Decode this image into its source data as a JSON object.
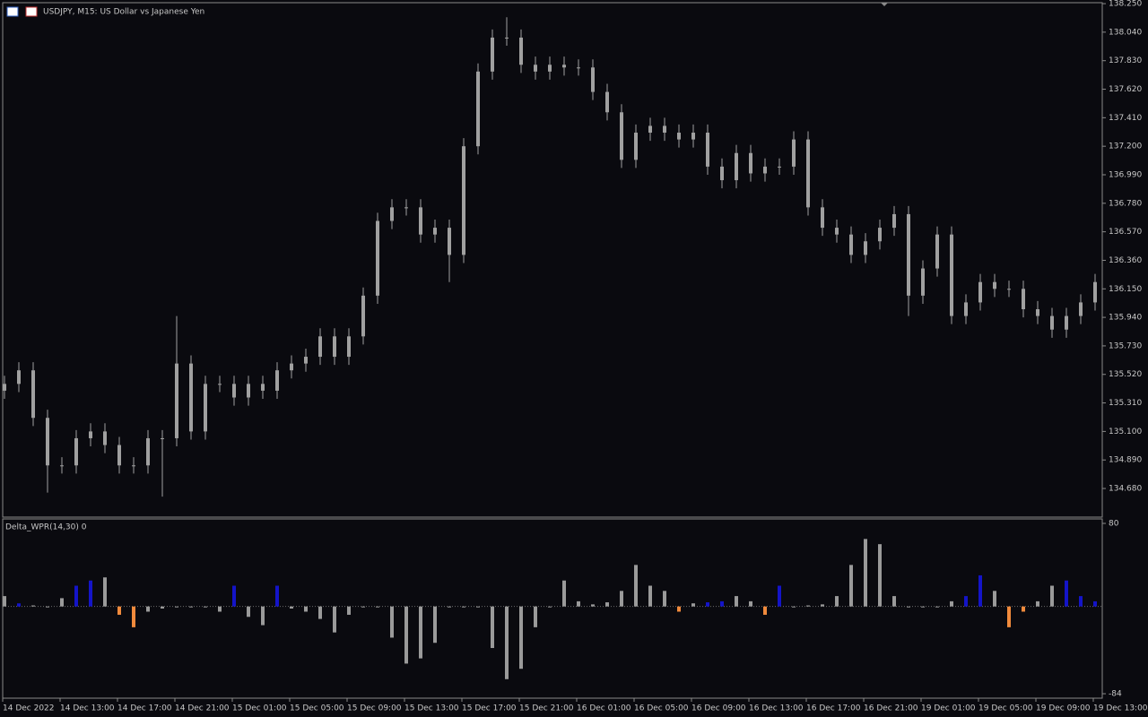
{
  "chart_data": [
    {
      "type": "candlestick",
      "title": "USDJPY, M15:  US Dollar vs Japanese Yen",
      "color": "#a0a0a0",
      "open": [
        135.4,
        135.45,
        135.55,
        135.2,
        134.85,
        134.85,
        135.05,
        135.1,
        135.0,
        134.85,
        134.85,
        135.05,
        135.05,
        135.6,
        135.1,
        135.45,
        135.45,
        135.35,
        135.45,
        135.4,
        135.55,
        135.6,
        135.65,
        135.8,
        135.65,
        135.8,
        136.1,
        136.65,
        136.75,
        136.75,
        136.55,
        136.6,
        136.4,
        137.2,
        137.75,
        138.0,
        138.0,
        137.8,
        137.75,
        137.8,
        137.78,
        137.78,
        137.6,
        137.45,
        137.1,
        137.3,
        137.35,
        137.3,
        137.25,
        137.3,
        137.05,
        136.95,
        137.15,
        137.0,
        137.05,
        137.05,
        137.25,
        136.75,
        136.6,
        136.55,
        136.4,
        136.5,
        136.6,
        136.7,
        136.1,
        136.3,
        136.55,
        135.95,
        136.05,
        136.2,
        136.15,
        136.15,
        136.0,
        135.95,
        135.85,
        135.95,
        136.05
      ],
      "high": [
        135.51,
        135.61,
        135.61,
        135.26,
        134.91,
        135.11,
        135.16,
        135.16,
        135.06,
        134.91,
        135.11,
        135.11,
        135.95,
        135.66,
        135.51,
        135.51,
        135.51,
        135.51,
        135.51,
        135.61,
        135.66,
        135.71,
        135.86,
        135.86,
        135.86,
        136.16,
        136.71,
        136.81,
        136.81,
        136.81,
        136.66,
        136.66,
        137.26,
        137.81,
        138.06,
        138.15,
        138.06,
        137.86,
        137.86,
        137.86,
        137.84,
        137.84,
        137.66,
        137.51,
        137.36,
        137.41,
        137.41,
        137.36,
        137.36,
        137.36,
        137.11,
        137.21,
        137.21,
        137.11,
        137.11,
        137.31,
        137.31,
        136.81,
        136.66,
        136.61,
        136.56,
        136.66,
        136.76,
        136.76,
        136.36,
        136.61,
        136.61,
        136.11,
        136.26,
        136.26,
        136.21,
        136.21,
        136.06,
        136.01,
        136.01,
        136.11,
        136.26
      ],
      "low": [
        135.34,
        135.39,
        135.14,
        134.65,
        134.79,
        134.79,
        134.99,
        134.94,
        134.79,
        134.79,
        134.79,
        134.62,
        134.99,
        135.04,
        135.04,
        135.39,
        135.29,
        135.29,
        135.34,
        135.34,
        135.49,
        135.54,
        135.59,
        135.59,
        135.59,
        135.74,
        136.04,
        136.59,
        136.69,
        136.49,
        136.49,
        136.2,
        136.34,
        137.14,
        137.69,
        137.94,
        137.74,
        137.69,
        137.69,
        137.72,
        137.72,
        137.54,
        137.39,
        137.04,
        137.04,
        137.24,
        137.24,
        137.19,
        137.19,
        136.99,
        136.89,
        136.89,
        136.94,
        136.94,
        136.99,
        136.99,
        136.69,
        136.54,
        136.49,
        136.34,
        136.34,
        136.44,
        136.54,
        135.95,
        136.04,
        136.24,
        135.89,
        135.89,
        135.99,
        136.09,
        136.09,
        135.94,
        135.89,
        135.79,
        135.79,
        135.89,
        135.99
      ],
      "close": [
        135.45,
        135.55,
        135.2,
        134.85,
        134.85,
        135.05,
        135.1,
        135.0,
        134.85,
        134.85,
        135.05,
        135.05,
        135.6,
        135.1,
        135.45,
        135.45,
        135.35,
        135.45,
        135.4,
        135.55,
        135.6,
        135.65,
        135.8,
        135.65,
        135.8,
        136.1,
        136.65,
        136.75,
        136.75,
        136.55,
        136.6,
        136.4,
        137.2,
        137.75,
        138.0,
        138.0,
        137.8,
        137.75,
        137.8,
        137.78,
        137.78,
        137.6,
        137.45,
        137.1,
        137.3,
        137.35,
        137.3,
        137.25,
        137.3,
        137.05,
        136.95,
        137.15,
        137.0,
        137.05,
        137.05,
        137.25,
        136.75,
        136.6,
        136.55,
        136.4,
        136.5,
        136.6,
        136.7,
        136.1,
        136.3,
        136.55,
        135.95,
        136.05,
        136.2,
        136.15,
        136.15,
        136.0,
        135.95,
        135.85,
        135.95,
        136.05,
        136.2
      ],
      "ylim": [
        134.469,
        138.257
      ],
      "yticks": [
        {
          "value": 138.25,
          "label": "138.250"
        },
        {
          "value": 138.04,
          "label": "138.040"
        },
        {
          "value": 137.83,
          "label": "137.830"
        },
        {
          "value": 137.62,
          "label": "137.620"
        },
        {
          "value": 137.41,
          "label": "137.410"
        },
        {
          "value": 137.2,
          "label": "137.200"
        },
        {
          "value": 136.99,
          "label": "136.990"
        },
        {
          "value": 136.78,
          "label": "136.780"
        },
        {
          "value": 136.57,
          "label": "136.570"
        },
        {
          "value": 136.36,
          "label": "136.360"
        },
        {
          "value": 136.15,
          "label": "136.150"
        },
        {
          "value": 135.94,
          "label": "135.940"
        },
        {
          "value": 135.73,
          "label": "135.730"
        },
        {
          "value": 135.52,
          "label": "135.520"
        },
        {
          "value": 135.31,
          "label": "135.310"
        },
        {
          "value": 135.1,
          "label": "135.100"
        },
        {
          "value": 134.89,
          "label": "134.890"
        },
        {
          "value": 134.68,
          "label": "134.680"
        }
      ],
      "categories": [
        "14 Dec 2022",
        "14 Dec 13:00",
        "14 Dec 17:00",
        "14 Dec 21:00",
        "15 Dec 01:00",
        "15 Dec 05:00",
        "15 Dec 09:00",
        "15 Dec 13:00",
        "15 Dec 17:00",
        "15 Dec 21:00",
        "16 Dec 01:00",
        "16 Dec 05:00",
        "16 Dec 09:00",
        "16 Dec 13:00",
        "16 Dec 17:00",
        "16 Dec 21:00",
        "19 Dec 01:00",
        "19 Dec 05:00",
        "19 Dec 09:00",
        "19 Dec 13:00"
      ]
    },
    {
      "type": "histogram",
      "title": "Delta_WPR(14,30) 0",
      "values": [
        10,
        3,
        1,
        0,
        8,
        20,
        25,
        28,
        -8,
        -20,
        -5,
        -2,
        0,
        0,
        0,
        -5,
        20,
        -10,
        -18,
        20,
        -2,
        -5,
        -12,
        -25,
        -8,
        0,
        0,
        -30,
        -55,
        -50,
        -35,
        0,
        0,
        0,
        -40,
        -70,
        -60,
        -20,
        0,
        25,
        5,
        2,
        4,
        15,
        40,
        20,
        15,
        -5,
        3,
        4,
        5,
        10,
        5,
        -8,
        20,
        0,
        1,
        2,
        10,
        40,
        65,
        60,
        10,
        0,
        0,
        0,
        5,
        10,
        30,
        15,
        -20,
        -5,
        5,
        20,
        25,
        10,
        5
      ],
      "palette": [
        "#9a9a9a",
        "#1414c8",
        "#f08a3c"
      ],
      "color_index": [
        0,
        1,
        0,
        0,
        0,
        1,
        1,
        0,
        2,
        2,
        0,
        0,
        0,
        0,
        0,
        0,
        1,
        0,
        0,
        1,
        0,
        0,
        0,
        0,
        0,
        0,
        0,
        0,
        0,
        0,
        0,
        0,
        0,
        0,
        0,
        0,
        0,
        0,
        0,
        0,
        0,
        0,
        0,
        0,
        0,
        0,
        0,
        2,
        0,
        1,
        1,
        0,
        0,
        2,
        1,
        0,
        0,
        0,
        0,
        0,
        0,
        0,
        0,
        0,
        0,
        0,
        0,
        1,
        1,
        0,
        2,
        2,
        0,
        0,
        1,
        1,
        1
      ],
      "ylim": [
        -88.3,
        84.3
      ],
      "yticks": [
        80,
        -84
      ]
    }
  ]
}
